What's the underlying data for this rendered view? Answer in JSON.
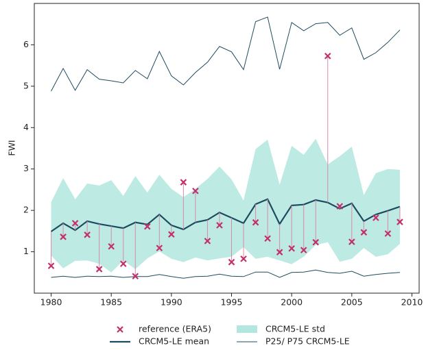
{
  "chart_data": {
    "type": "line",
    "y_label": "FWI",
    "x": [
      1980,
      1981,
      1982,
      1983,
      1984,
      1985,
      1986,
      1987,
      1988,
      1989,
      1990,
      1991,
      1992,
      1993,
      1994,
      1995,
      1996,
      1997,
      1998,
      1999,
      2000,
      2001,
      2002,
      2003,
      2004,
      2005,
      2006,
      2007,
      2008,
      2009
    ],
    "xlim": [
      1978.6,
      2010.6
    ],
    "xticks": [
      1980,
      1985,
      1990,
      1995,
      2000,
      2005,
      2010
    ],
    "ylim": [
      0,
      7
    ],
    "yticks": [
      1,
      2,
      3,
      4,
      5,
      6
    ],
    "grid": false,
    "legend": "bottom",
    "series": [
      {
        "name": "reference (ERA5)",
        "type": "scatter",
        "color": "#c2306b",
        "stem_color": "#d58aa8",
        "values": [
          0.66,
          1.36,
          1.69,
          1.41,
          0.58,
          1.13,
          0.71,
          0.41,
          1.61,
          1.09,
          1.42,
          2.68,
          2.47,
          1.26,
          1.64,
          0.75,
          0.83,
          1.71,
          1.32,
          0.99,
          1.08,
          1.04,
          1.23,
          5.73,
          2.1,
          1.24,
          1.47,
          1.82,
          1.44,
          1.72
        ]
      },
      {
        "name": "CRCM5-LE mean",
        "type": "line",
        "color": "#1c4a5e",
        "values": [
          1.49,
          1.69,
          1.52,
          1.74,
          1.67,
          1.62,
          1.57,
          1.71,
          1.66,
          1.9,
          1.64,
          1.54,
          1.71,
          1.77,
          1.95,
          1.82,
          1.69,
          2.15,
          2.27,
          1.67,
          2.12,
          2.14,
          2.25,
          2.19,
          2.04,
          2.17,
          1.74,
          1.9,
          1.99,
          2.09
        ]
      },
      {
        "name": "CRCM5-LE std",
        "type": "band",
        "color": "#b3e6df",
        "upper": [
          2.2,
          2.78,
          2.27,
          2.65,
          2.6,
          2.73,
          2.35,
          2.83,
          2.43,
          2.86,
          2.52,
          2.32,
          2.52,
          2.76,
          3.06,
          2.75,
          2.24,
          3.48,
          3.71,
          2.62,
          3.56,
          3.34,
          3.73,
          3.11,
          3.31,
          3.54,
          2.37,
          2.9,
          3.0,
          2.98
        ],
        "lower": [
          0.91,
          0.6,
          0.78,
          0.79,
          0.71,
          0.5,
          0.79,
          0.58,
          0.84,
          1.01,
          0.83,
          0.75,
          0.86,
          0.79,
          0.84,
          0.88,
          1.11,
          0.83,
          0.88,
          0.79,
          0.7,
          0.88,
          1.16,
          1.23,
          0.76,
          0.83,
          1.09,
          0.88,
          0.94,
          1.19
        ]
      },
      {
        "name": "P25/ P75 CRCM5-LE",
        "type": "line",
        "color": "#1c4a5e",
        "upper": [
          4.88,
          5.43,
          4.9,
          5.4,
          5.17,
          5.13,
          5.08,
          5.38,
          5.18,
          5.84,
          5.25,
          5.03,
          5.33,
          5.58,
          5.96,
          5.83,
          5.4,
          6.56,
          6.67,
          5.41,
          6.54,
          6.34,
          6.51,
          6.54,
          6.23,
          6.41,
          5.65,
          5.81,
          6.06,
          6.36
        ],
        "lower": [
          0.38,
          0.41,
          0.38,
          0.41,
          0.4,
          0.41,
          0.38,
          0.4,
          0.4,
          0.45,
          0.4,
          0.36,
          0.4,
          0.41,
          0.46,
          0.41,
          0.4,
          0.51,
          0.51,
          0.38,
          0.5,
          0.51,
          0.56,
          0.5,
          0.48,
          0.53,
          0.41,
          0.45,
          0.48,
          0.5
        ]
      }
    ]
  }
}
